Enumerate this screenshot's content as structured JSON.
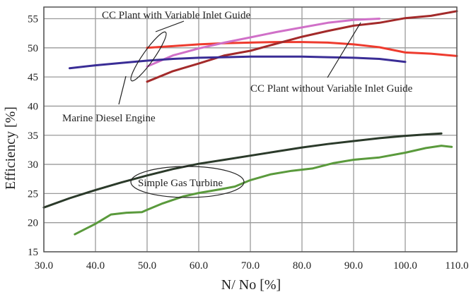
{
  "chart_data": {
    "type": "line",
    "xlabel": "N/ No  [%]",
    "ylabel": "Efficiency  [%]",
    "xlim": [
      30,
      110
    ],
    "ylim": [
      15,
      57
    ],
    "xticks": [
      30,
      40,
      50,
      60,
      70,
      80,
      90,
      100,
      110
    ],
    "xtick_labels": [
      "30.0",
      "40.0",
      "50.0",
      "60.0",
      "70.0",
      "80.0",
      "90.0",
      "100.0",
      "110.0"
    ],
    "yticks": [
      15,
      20,
      25,
      30,
      35,
      40,
      45,
      50,
      55
    ],
    "ytick_labels": [
      "15",
      "20",
      "25",
      "30",
      "35",
      "40",
      "45",
      "50",
      "55"
    ],
    "grid": true,
    "series": [
      {
        "id": "cc-with-vig",
        "color": "#ee3b2e",
        "x": [
          50,
          55,
          60,
          65,
          70,
          75,
          80,
          85,
          90,
          95,
          100,
          105,
          110
        ],
        "y": [
          50.0,
          50.3,
          50.6,
          50.8,
          50.9,
          51.0,
          51.0,
          50.9,
          50.6,
          50.1,
          49.2,
          49.0,
          48.6
        ]
      },
      {
        "id": "cc-without-vig",
        "color": "#a32a2a",
        "x": [
          50,
          55,
          60,
          65,
          70,
          75,
          80,
          85,
          90,
          95,
          100,
          105,
          110
        ],
        "y": [
          44.2,
          46.0,
          47.3,
          48.7,
          49.5,
          50.7,
          51.9,
          52.9,
          53.8,
          54.3,
          55.1,
          55.5,
          56.3
        ]
      },
      {
        "id": "cc-pink",
        "color": "#d070c8",
        "x": [
          50,
          55,
          60,
          65,
          70,
          75,
          80,
          85,
          90,
          95
        ],
        "y": [
          46.8,
          48.7,
          49.9,
          50.9,
          51.8,
          52.7,
          53.5,
          54.3,
          54.8,
          55.0
        ]
      },
      {
        "id": "marine-diesel",
        "color": "#3a2d96",
        "x": [
          35,
          40,
          45,
          50,
          55,
          60,
          65,
          70,
          75,
          80,
          85,
          90,
          95,
          100
        ],
        "y": [
          46.5,
          47.0,
          47.4,
          47.8,
          48.1,
          48.3,
          48.4,
          48.5,
          48.5,
          48.5,
          48.4,
          48.3,
          48.1,
          47.6
        ]
      },
      {
        "id": "simple-gt-dark",
        "color": "#2b3a2a",
        "x": [
          30,
          35,
          40,
          45,
          50,
          55,
          60,
          65,
          70,
          75,
          80,
          85,
          90,
          95,
          100,
          105,
          107
        ],
        "y": [
          22.6,
          24.2,
          25.6,
          26.9,
          28.1,
          29.2,
          30.1,
          30.8,
          31.5,
          32.2,
          32.9,
          33.5,
          34.0,
          34.5,
          34.9,
          35.2,
          35.3
        ]
      },
      {
        "id": "simple-gt-green",
        "color": "#5a9a3c",
        "x": [
          36,
          40,
          43,
          46,
          49,
          50,
          53,
          57,
          60,
          64,
          67,
          70,
          74,
          78,
          82,
          86,
          90,
          95,
          100,
          104,
          107,
          109
        ],
        "y": [
          18.0,
          19.8,
          21.4,
          21.7,
          21.8,
          22.2,
          23.3,
          24.5,
          25.1,
          25.7,
          26.2,
          27.3,
          28.3,
          28.9,
          29.3,
          30.2,
          30.8,
          31.2,
          32.0,
          32.8,
          33.2,
          33.0
        ]
      }
    ],
    "annotations": {
      "cc_with_vig": "CC Plant with Variable Inlet Guide",
      "cc_without_vig": "CC Plant without Variable Inlet Guide",
      "marine_diesel": "Marine Diesel Engine",
      "simple_gas_turbine": "Simple Gas Turbine"
    }
  }
}
